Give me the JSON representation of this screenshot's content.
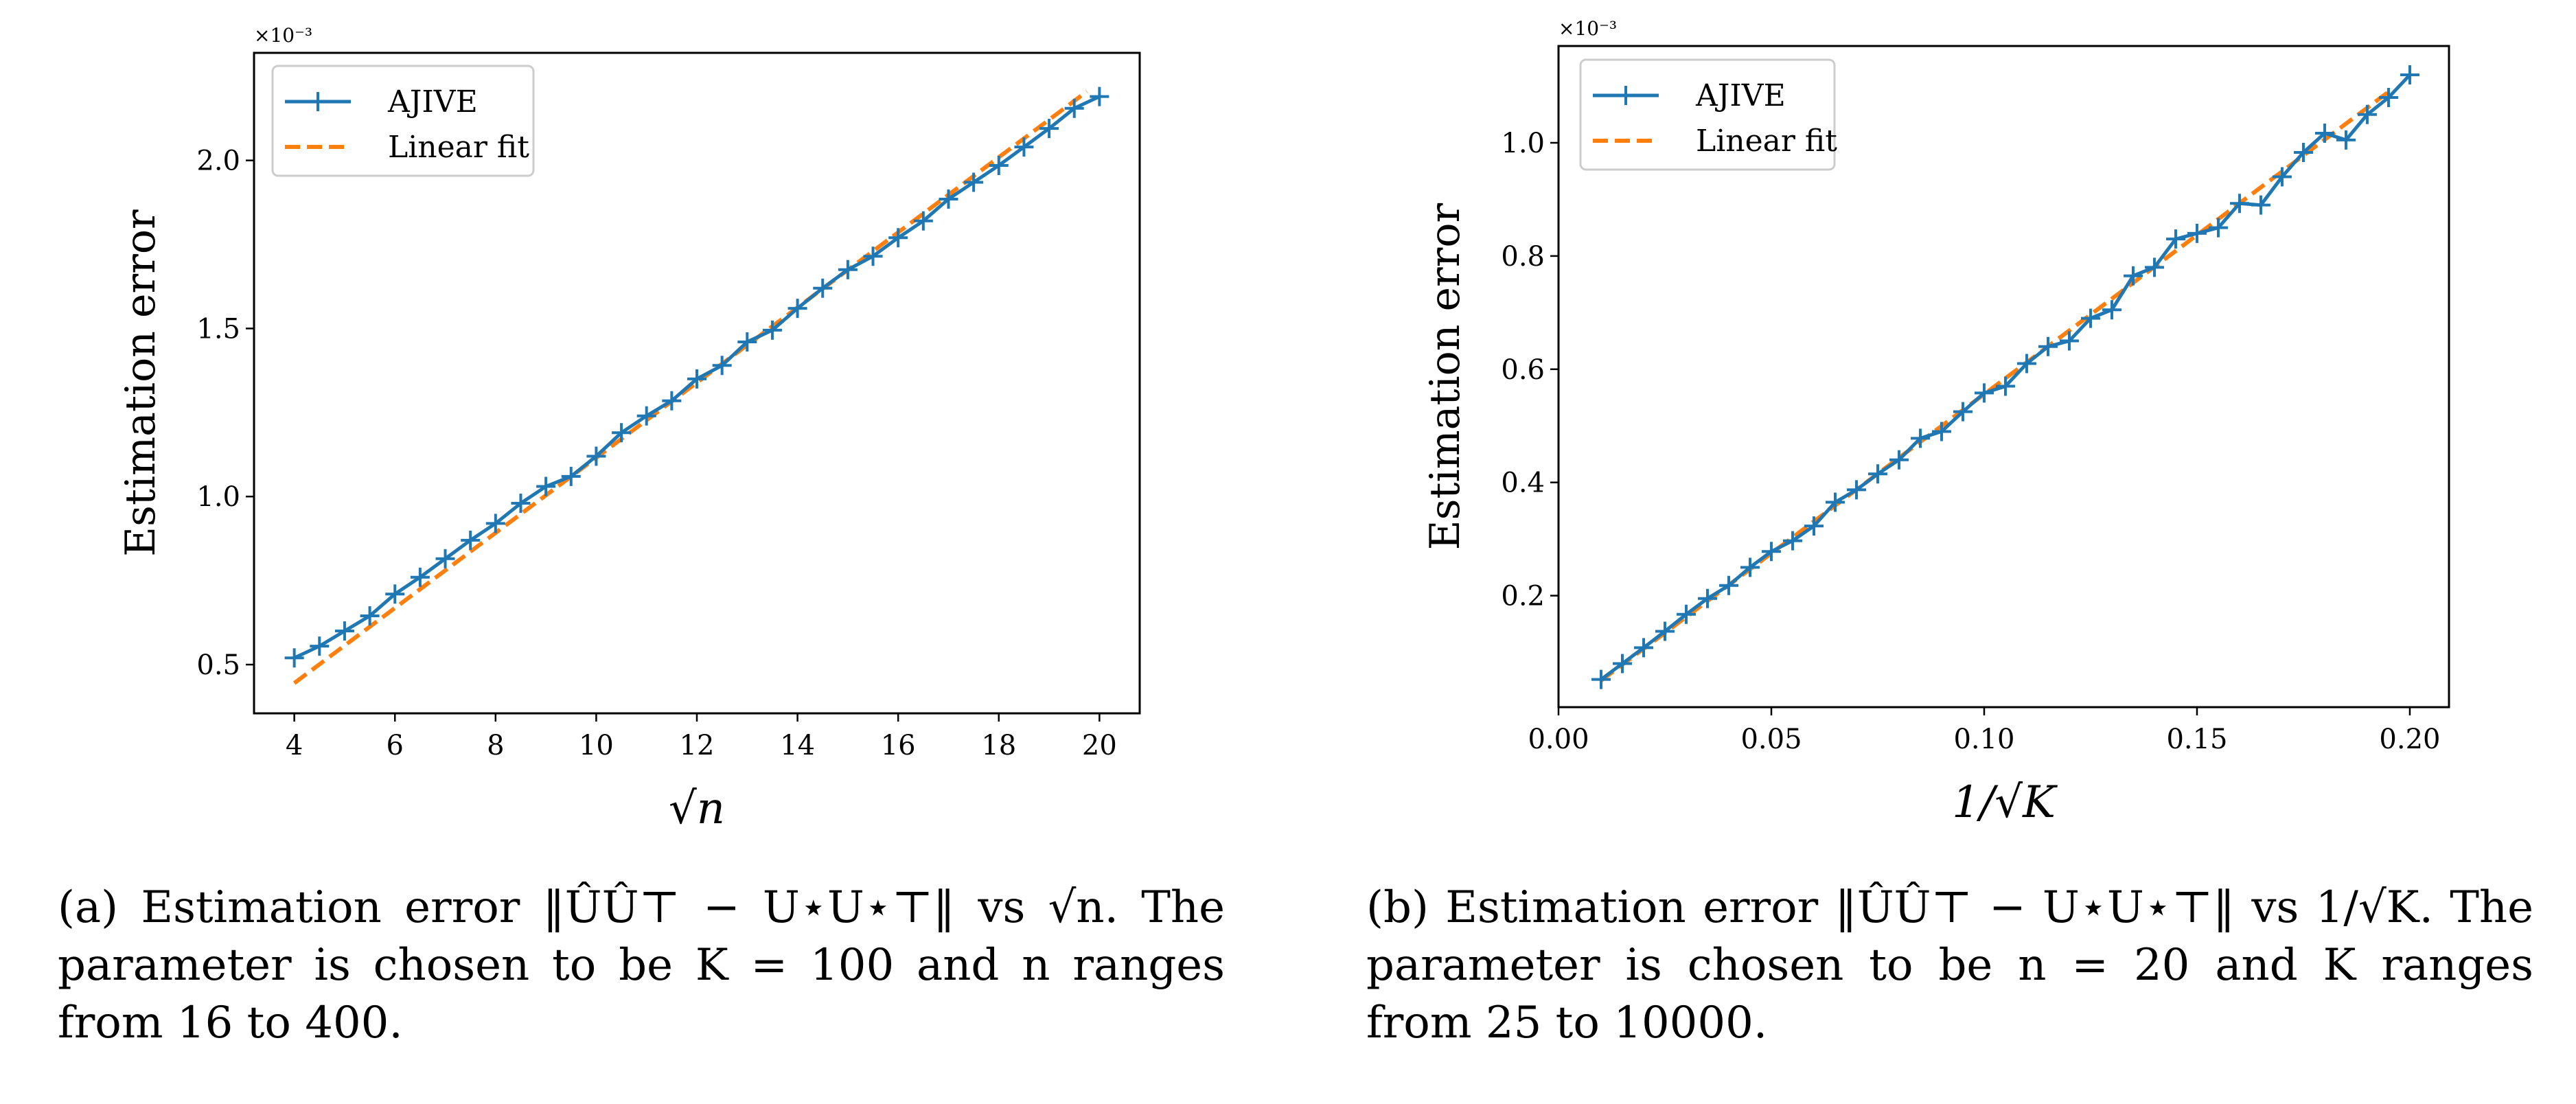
{
  "colors": {
    "ajive": "#1f77b4",
    "fit": "#ff7f0e"
  },
  "chart_data": [
    {
      "type": "line",
      "title": "",
      "xlabel": "√n",
      "ylabel": "Estimation error",
      "y_scale_label": "×10⁻³",
      "xlim": [
        3.2,
        20.8
      ],
      "ylim": [
        0.355,
        2.32
      ],
      "xticks": [
        4,
        6,
        8,
        10,
        12,
        14,
        16,
        18,
        20
      ],
      "xtick_labels": [
        "4",
        "6",
        "8",
        "10",
        "12",
        "14",
        "16",
        "18",
        "20"
      ],
      "yticks": [
        0.5,
        1.0,
        1.5,
        2.0
      ],
      "ytick_labels": [
        "0.5",
        "1.0",
        "1.5",
        "2.0"
      ],
      "legend": {
        "position": "top-left",
        "entries": [
          "AJIVE",
          "Linear fit"
        ]
      },
      "series": [
        {
          "name": "AJIVE",
          "style": "solid-plus",
          "x": [
            4,
            4.5,
            5,
            5.5,
            6,
            6.5,
            7,
            7.5,
            8,
            8.5,
            9,
            9.5,
            10,
            10.5,
            11,
            11.5,
            12,
            12.5,
            13,
            13.5,
            14,
            14.5,
            15,
            15.5,
            16,
            16.5,
            17,
            17.5,
            18,
            18.5,
            19,
            19.5,
            20
          ],
          "y": [
            0.52,
            0.555,
            0.6,
            0.645,
            0.71,
            0.76,
            0.815,
            0.87,
            0.92,
            0.98,
            1.03,
            1.06,
            1.12,
            1.19,
            1.24,
            1.285,
            1.35,
            1.39,
            1.46,
            1.495,
            1.56,
            1.62,
            1.675,
            1.715,
            1.77,
            1.82,
            1.885,
            1.935,
            1.985,
            2.04,
            2.095,
            2.155,
            2.19
          ]
        },
        {
          "name": "Linear fit",
          "style": "dashed",
          "x": [
            4,
            19.75
          ],
          "y": [
            0.445,
            2.205
          ]
        }
      ]
    },
    {
      "type": "line",
      "title": "",
      "xlabel": "1/√K",
      "ylabel": "Estimation error",
      "y_scale_label": "×10⁻³",
      "xlim": [
        0,
        0.2092
      ],
      "ylim": [
        0.003,
        1.171
      ],
      "xticks": [
        0,
        0.05,
        0.1,
        0.15,
        0.2
      ],
      "xtick_labels": [
        "0.00",
        "0.05",
        "0.10",
        "0.15",
        "0.20"
      ],
      "yticks": [
        0.2,
        0.4,
        0.6,
        0.8,
        1.0
      ],
      "ytick_labels": [
        "0.2",
        "0.4",
        "0.6",
        "0.8",
        "1.0"
      ],
      "legend": {
        "position": "top-left",
        "entries": [
          "AJIVE",
          "Linear fit"
        ]
      },
      "series": [
        {
          "name": "AJIVE",
          "style": "solid-plus",
          "x": [
            0.01,
            0.015,
            0.02,
            0.025,
            0.03,
            0.035,
            0.04,
            0.045,
            0.05,
            0.055,
            0.06,
            0.065,
            0.07,
            0.075,
            0.08,
            0.085,
            0.09,
            0.095,
            0.1,
            0.105,
            0.11,
            0.115,
            0.12,
            0.125,
            0.13,
            0.135,
            0.14,
            0.145,
            0.15,
            0.155,
            0.16,
            0.165,
            0.17,
            0.175,
            0.18,
            0.185,
            0.19,
            0.195,
            0.2
          ],
          "y": [
            0.052,
            0.08,
            0.108,
            0.137,
            0.167,
            0.195,
            0.218,
            0.25,
            0.278,
            0.297,
            0.323,
            0.365,
            0.387,
            0.415,
            0.44,
            0.478,
            0.49,
            0.525,
            0.558,
            0.57,
            0.61,
            0.64,
            0.65,
            0.69,
            0.705,
            0.765,
            0.78,
            0.83,
            0.84,
            0.85,
            0.893,
            0.89,
            0.94,
            0.983,
            1.017,
            1.005,
            1.05,
            1.08,
            1.12
          ]
        },
        {
          "name": "Linear fit",
          "style": "dashed",
          "x": [
            0.01,
            0.195
          ],
          "y": [
            0.05,
            1.09
          ]
        }
      ]
    }
  ],
  "captions": {
    "a": "(a) Estimation error ‖ÛÛ⊤ − U⋆U⋆⊤‖ vs √n. The parameter is chosen to be K = 100 and n ranges from 16 to 400.",
    "b": "(b) Estimation error ‖ÛÛ⊤ − U⋆U⋆⊤‖ vs 1/√K. The parameter is chosen to be n = 20 and K ranges from 25 to 10000."
  }
}
